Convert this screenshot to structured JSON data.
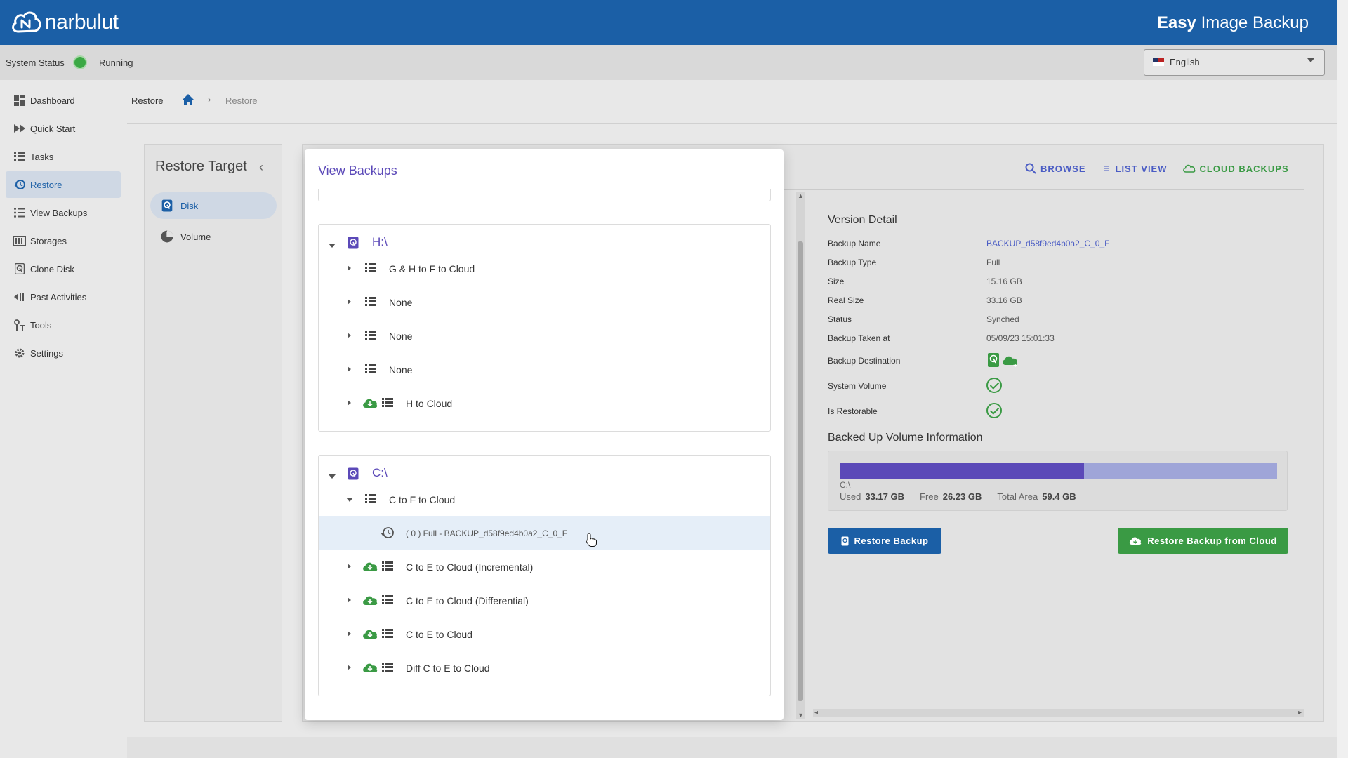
{
  "header": {
    "brand": "narbulut",
    "product_bold": "Easy",
    "product_rest": " Image Backup"
  },
  "status": {
    "label": "System Status",
    "value": "Running",
    "language": "English"
  },
  "sidebar": {
    "items": [
      {
        "label": "Dashboard",
        "icon": "dashboard-icon"
      },
      {
        "label": "Quick Start",
        "icon": "fast-forward-icon"
      },
      {
        "label": "Tasks",
        "icon": "list-icon"
      },
      {
        "label": "Restore",
        "icon": "history-icon",
        "active": true
      },
      {
        "label": "View Backups",
        "icon": "list-bullets-icon"
      },
      {
        "label": "Storages",
        "icon": "storage-icon"
      },
      {
        "label": "Clone Disk",
        "icon": "disk-icon"
      },
      {
        "label": "Past Activities",
        "icon": "rewind-icon"
      },
      {
        "label": "Tools",
        "icon": "tools-icon"
      },
      {
        "label": "Settings",
        "icon": "gear-icon"
      }
    ]
  },
  "breadcrumb": {
    "title": "Restore",
    "current": "Restore"
  },
  "target": {
    "title": "Restore Target",
    "items": [
      {
        "label": "Disk",
        "active": true
      },
      {
        "label": "Volume"
      }
    ]
  },
  "tabs": {
    "browse": "BROWSE",
    "list_view": "LIST VIEW",
    "cloud_backups": "CLOUD BACKUPS"
  },
  "detail": {
    "title": "Version Detail",
    "rows": [
      {
        "label": "Backup Name",
        "value": "BACKUP_d58f9ed4b0a2_C_0_F"
      },
      {
        "label": "Backup Type",
        "value": "Full"
      },
      {
        "label": "Size",
        "value": "15.16 GB"
      },
      {
        "label": "Real Size",
        "value": "33.16 GB"
      },
      {
        "label": "Status",
        "value": "Synched"
      },
      {
        "label": "Backup Taken at",
        "value": "05/09/23 15:01:33"
      },
      {
        "label": "Backup Destination",
        "value": ""
      },
      {
        "label": "System Volume",
        "value": ""
      },
      {
        "label": "Is Restorable",
        "value": ""
      }
    ],
    "volume_title": "Backed Up Volume Information",
    "volume": {
      "name": "C:\\",
      "used_label": "Used",
      "used": "33.17 GB",
      "free_label": "Free",
      "free": "26.23 GB",
      "total_label": "Total Area",
      "total": "59.4 GB",
      "used_fraction": 0.558
    },
    "restore_button": "Restore Backup",
    "restore_cloud_button": "Restore Backup from Cloud"
  },
  "modal": {
    "title": "View Backups",
    "groups": [
      {
        "drive": "H:\\",
        "items": [
          {
            "label": "G & H to F to Cloud",
            "cloud": false
          },
          {
            "label": "None",
            "cloud": false
          },
          {
            "label": "None",
            "cloud": false
          },
          {
            "label": "None",
            "cloud": false
          },
          {
            "label": "H to Cloud",
            "cloud": true
          }
        ]
      },
      {
        "drive": "C:\\",
        "items": [
          {
            "label": "C to F to Cloud",
            "cloud": false,
            "expanded": true
          },
          {
            "label": "( 0 ) Full - BACKUP_d58f9ed4b0a2_C_0_F",
            "version": true
          },
          {
            "label": "C to E to Cloud (Incremental)",
            "cloud": true
          },
          {
            "label": "C to E to Cloud (Differential)",
            "cloud": true
          },
          {
            "label": "C to E to Cloud",
            "cloud": true
          },
          {
            "label": "Diff C to E to Cloud",
            "cloud": true
          }
        ]
      }
    ]
  },
  "colors": {
    "brand_blue": "#1b5fa6",
    "accent_purple": "#5b49b8",
    "cloud_green": "#3a9a44"
  }
}
